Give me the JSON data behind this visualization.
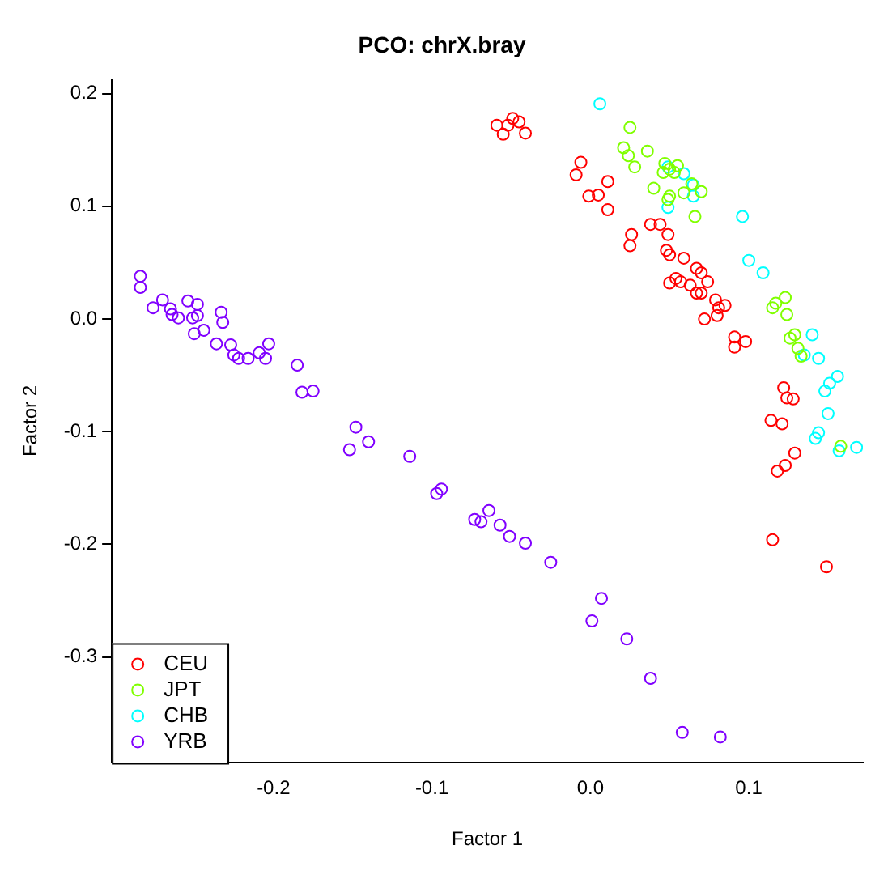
{
  "chart_data": {
    "type": "scatter",
    "title": "PCO: chrX.bray",
    "xlabel": "Factor 1",
    "ylabel": "Factor 2",
    "xlim": [
      -0.302,
      0.172
    ],
    "ylim": [
      -0.394,
      0.213
    ],
    "xticks": [
      -0.2,
      -0.1,
      {
        "value": 0,
        "label": "0.0"
      },
      0.1
    ],
    "yticks": [
      -0.3,
      -0.2,
      -0.1,
      {
        "value": 0,
        "label": "0.0"
      },
      0.1,
      0.2
    ],
    "grid": false,
    "legend": "bottom left",
    "marker": "circle",
    "series": [
      {
        "name": "CEU",
        "color": "#ff0000",
        "x": [
          -0.059,
          -0.055,
          -0.052,
          -0.049,
          -0.045,
          -0.041,
          -0.006,
          -0.009,
          0.011,
          -0.001,
          0.005,
          0.011,
          0.038,
          0.044,
          0.049,
          0.026,
          0.025,
          0.048,
          0.05,
          0.059,
          0.067,
          0.07,
          0.05,
          0.054,
          0.057,
          0.063,
          0.067,
          0.07,
          0.074,
          0.072,
          0.079,
          0.08,
          0.081,
          0.085,
          0.091,
          0.098,
          0.091,
          0.122,
          0.124,
          0.128,
          0.114,
          0.121,
          0.129,
          0.123,
          0.118,
          0.115,
          0.149
        ],
        "values": [
          0.172,
          0.164,
          0.172,
          0.178,
          0.175,
          0.165,
          0.139,
          0.128,
          0.122,
          0.109,
          0.11,
          0.097,
          0.084,
          0.084,
          0.075,
          0.075,
          0.065,
          0.061,
          0.057,
          0.054,
          0.045,
          0.041,
          0.032,
          0.036,
          0.033,
          0.03,
          0.023,
          0.023,
          0.033,
          0.0,
          0.017,
          0.003,
          0.01,
          0.012,
          -0.016,
          -0.02,
          -0.025,
          -0.061,
          -0.07,
          -0.071,
          -0.09,
          -0.093,
          -0.119,
          -0.13,
          -0.135,
          -0.196,
          -0.22
        ]
      },
      {
        "name": "JPT",
        "color": "#80ff00",
        "x": [
          0.025,
          0.021,
          0.024,
          0.028,
          0.036,
          0.047,
          0.046,
          0.05,
          0.053,
          0.055,
          0.04,
          0.05,
          0.049,
          0.064,
          0.059,
          0.07,
          0.066,
          0.115,
          0.117,
          0.123,
          0.124,
          0.129,
          0.126,
          0.131,
          0.133,
          0.158
        ],
        "values": [
          0.17,
          0.152,
          0.145,
          0.135,
          0.149,
          0.138,
          0.13,
          0.133,
          0.13,
          0.136,
          0.116,
          0.109,
          0.106,
          0.12,
          0.112,
          0.113,
          0.091,
          0.01,
          0.014,
          0.019,
          0.004,
          -0.014,
          -0.017,
          -0.026,
          -0.033,
          -0.113
        ]
      },
      {
        "name": "CHB",
        "color": "#00ffff",
        "x": [
          0.006,
          0.049,
          0.059,
          0.065,
          0.065,
          0.049,
          0.096,
          0.1,
          0.109,
          0.14,
          0.144,
          0.135,
          0.156,
          0.151,
          0.148,
          0.15,
          0.144,
          0.142,
          0.157,
          0.168
        ],
        "values": [
          0.191,
          0.135,
          0.129,
          0.119,
          0.109,
          0.099,
          0.091,
          0.052,
          0.041,
          -0.014,
          -0.035,
          -0.032,
          -0.051,
          -0.057,
          -0.064,
          -0.084,
          -0.101,
          -0.106,
          -0.117,
          -0.114
        ]
      },
      {
        "name": "YRB",
        "color": "#8000ff",
        "x": [
          -0.284,
          -0.284,
          -0.276,
          -0.27,
          -0.265,
          -0.264,
          -0.26,
          -0.254,
          -0.248,
          -0.251,
          -0.248,
          -0.25,
          -0.244,
          -0.233,
          -0.232,
          -0.236,
          -0.227,
          -0.225,
          -0.222,
          -0.216,
          -0.209,
          -0.205,
          -0.203,
          -0.185,
          -0.182,
          -0.175,
          -0.148,
          -0.14,
          -0.152,
          -0.114,
          -0.094,
          -0.097,
          -0.064,
          -0.073,
          -0.069,
          -0.057,
          -0.051,
          -0.041,
          -0.025,
          0.007,
          0.001,
          0.023,
          0.038,
          0.058,
          0.082
        ],
        "values": [
          0.038,
          0.028,
          0.01,
          0.017,
          0.009,
          0.004,
          0.001,
          0.016,
          0.013,
          0.001,
          0.003,
          -0.013,
          -0.01,
          0.006,
          -0.003,
          -0.022,
          -0.023,
          -0.032,
          -0.035,
          -0.035,
          -0.03,
          -0.035,
          -0.022,
          -0.041,
          -0.065,
          -0.064,
          -0.096,
          -0.109,
          -0.116,
          -0.122,
          -0.151,
          -0.155,
          -0.17,
          -0.178,
          -0.18,
          -0.183,
          -0.193,
          -0.199,
          -0.216,
          -0.248,
          -0.268,
          -0.284,
          -0.319,
          -0.367,
          -0.371
        ]
      }
    ]
  }
}
